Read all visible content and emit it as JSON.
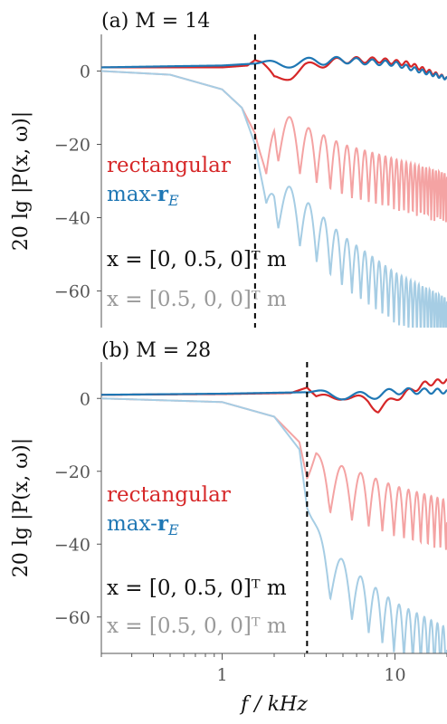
{
  "figure": {
    "ylabel": "20 lg |P(x, ω)|",
    "xlabel": "f / kHz",
    "xticks": [
      "1",
      "10"
    ]
  },
  "colors": {
    "rect_strong": "#d62728",
    "rect_light": "#f4a3a3",
    "maxre_strong": "#1f77b4",
    "maxre_light": "#a6cde4",
    "cutoff": "#000000",
    "gray_text": "#9a9a9a"
  },
  "legend": {
    "rectangular": "rectangular",
    "maxre_prefix": "max-",
    "maxre_bold": "r",
    "maxre_sub": "E",
    "pos1": "x = [0, 0.5, 0]ᵀ m",
    "pos2": "x = [0.5, 0, 0]ᵀ m"
  },
  "chart_data": [
    {
      "type": "line",
      "title": "(a) M = 14",
      "xscale": "log",
      "xlim_khz": [
        0.2,
        20
      ],
      "ylim_db": [
        -70,
        10
      ],
      "yticks": [
        0,
        -20,
        -40,
        -60
      ],
      "cutoff_khz": 1.55,
      "series": [
        {
          "name": "rectangular",
          "position": "x = [0, 0.5, 0]ᵀ m",
          "x": [
            0.2,
            0.5,
            1.0,
            1.4,
            1.55,
            1.7,
            2.0,
            2.5,
            3.0,
            5.0,
            8.0,
            12.0,
            20.0
          ],
          "y": [
            1,
            1,
            1,
            1.5,
            3,
            2,
            -2,
            -1,
            1,
            3,
            3,
            2,
            -2
          ]
        },
        {
          "name": "max-rE",
          "position": "x = [0, 0.5, 0]ᵀ m",
          "x": [
            0.2,
            0.5,
            1.0,
            1.5,
            2.0,
            5.0,
            10.0,
            20.0
          ],
          "y": [
            1,
            1.3,
            1.5,
            2,
            2,
            3,
            2,
            -2
          ]
        },
        {
          "name": "rectangular",
          "position": "x = [0.5, 0, 0]ᵀ m",
          "x": [
            0.2,
            0.5,
            1.0,
            1.3,
            1.55,
            1.8,
            2.0,
            3.0,
            5.0,
            10.0,
            20.0
          ],
          "y": [
            0,
            -1,
            -5,
            -10,
            -17,
            -28,
            -10,
            -15,
            -20,
            -24,
            -28
          ]
        },
        {
          "name": "max-rE",
          "position": "x = [0.5, 0, 0]ᵀ m",
          "x": [
            0.2,
            0.5,
            1.0,
            1.3,
            1.55,
            1.8,
            2.0,
            3.0,
            5.0,
            10.0,
            20.0
          ],
          "y": [
            0,
            -1,
            -5,
            -10,
            -20,
            -36,
            -28,
            -35,
            -45,
            -55,
            -62
          ]
        }
      ]
    },
    {
      "type": "line",
      "title": "(b) M = 28",
      "xscale": "log",
      "xlim_khz": [
        0.2,
        20
      ],
      "ylim_db": [
        -70,
        10
      ],
      "yticks": [
        0,
        -20,
        -40,
        -60
      ],
      "cutoff_khz": 3.1,
      "series": [
        {
          "name": "rectangular",
          "position": "x = [0, 0.5, 0]ᵀ m",
          "x": [
            0.2,
            1.0,
            2.5,
            3.1,
            3.5,
            5.0,
            7.0,
            8.0,
            10.0,
            15.0,
            20.0
          ],
          "y": [
            1,
            1.2,
            1.5,
            3,
            0,
            1,
            -1,
            -3,
            0,
            4,
            5
          ]
        },
        {
          "name": "max-rE",
          "position": "x = [0, 0.5, 0]ᵀ m",
          "x": [
            0.2,
            1.0,
            3.0,
            7.0,
            10.0,
            20.0
          ],
          "y": [
            1,
            1.3,
            1.7,
            0.5,
            2,
            2
          ]
        },
        {
          "name": "rectangular",
          "position": "x = [0.5, 0, 0]ᵀ m",
          "x": [
            0.2,
            1.0,
            2.0,
            2.8,
            3.1,
            3.5,
            4.0,
            6.0,
            10.0,
            20.0
          ],
          "y": [
            0,
            -1,
            -5,
            -12,
            -22,
            -15,
            -17,
            -20,
            -24,
            -28
          ]
        },
        {
          "name": "max-rE",
          "position": "x = [0.5, 0, 0]ᵀ m",
          "x": [
            0.2,
            1.0,
            2.0,
            2.8,
            3.1,
            3.5,
            4.0,
            6.0,
            10.0,
            20.0
          ],
          "y": [
            0,
            -1,
            -5,
            -14,
            -30,
            -35,
            -40,
            -48,
            -56,
            -63
          ]
        }
      ]
    }
  ]
}
